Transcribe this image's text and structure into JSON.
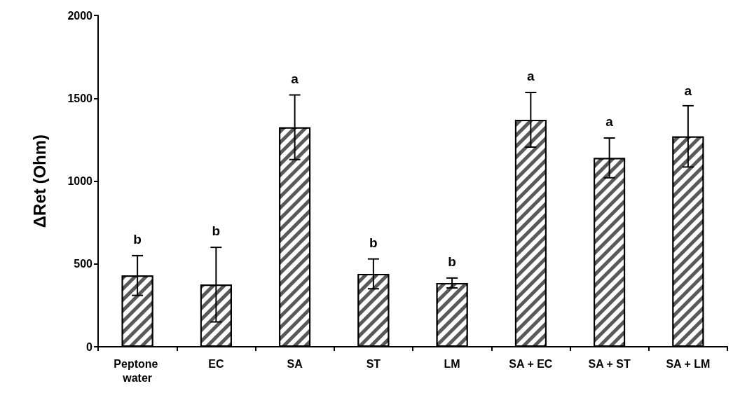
{
  "chart_data": {
    "type": "bar",
    "ylabel": "ΔRet (Ohm)",
    "categories": [
      "Peptone water",
      "EC",
      "SA",
      "ST",
      "LM",
      "SA + EC",
      "SA + ST",
      "SA + LM"
    ],
    "values": [
      430,
      375,
      1325,
      440,
      385,
      1370,
      1140,
      1270
    ],
    "errors": [
      120,
      225,
      195,
      90,
      30,
      165,
      120,
      185
    ],
    "color": "#595959",
    "ylim": [
      0,
      2000
    ],
    "yticks": [
      0,
      500,
      1000,
      1500,
      2000
    ],
    "grid": false,
    "annotations": [
      {
        "text": "b",
        "x": "Peptone water",
        "y": 550
      },
      {
        "text": "b",
        "x": "EC",
        "y": 600
      },
      {
        "text": "a",
        "x": "SA",
        "y": 1520
      },
      {
        "text": "b",
        "x": "ST",
        "y": 530
      },
      {
        "text": "b",
        "x": "LM",
        "y": 415
      },
      {
        "text": "a",
        "x": "SA + EC",
        "y": 1535
      },
      {
        "text": "a",
        "x": "SA + ST",
        "y": 1260
      },
      {
        "text": "a",
        "x": "SA + LM",
        "y": 1445
      }
    ]
  }
}
